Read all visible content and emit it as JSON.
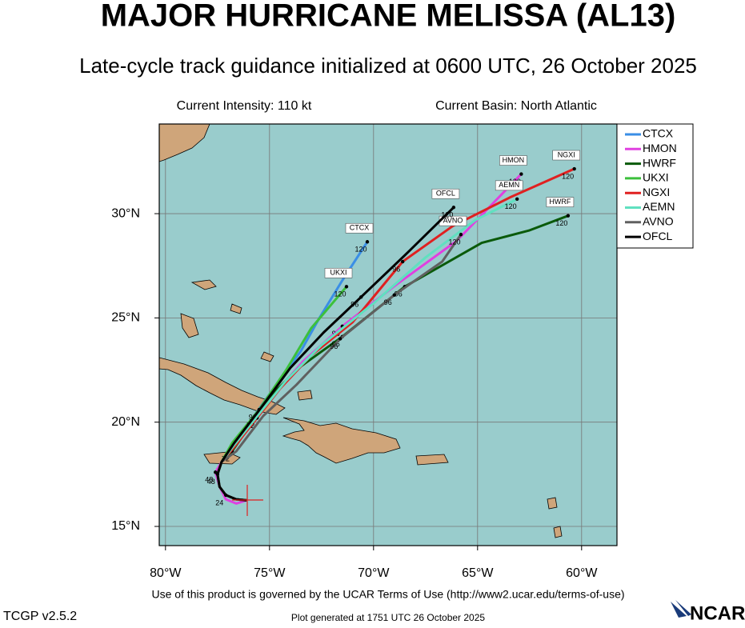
{
  "header": {
    "title": "MAJOR HURRICANE MELISSA (AL13)",
    "subtitle": "Late-cycle track guidance initialized at 0600 UTC, 26 October 2025"
  },
  "info": {
    "intensity": "Current Intensity: 110 kt",
    "basin": "Current Basin: North Atlantic"
  },
  "map": {
    "xlim": [
      -80.3,
      -58.3
    ],
    "ylim": [
      14.08,
      34.3
    ],
    "xticks": [
      {
        "value": -80,
        "label": "80°W"
      },
      {
        "value": -75,
        "label": "75°W"
      },
      {
        "value": -70,
        "label": "70°W"
      },
      {
        "value": -65,
        "label": "65°W"
      },
      {
        "value": -60,
        "label": "60°W"
      }
    ],
    "yticks": [
      {
        "value": 15,
        "label": "15°N"
      },
      {
        "value": 20,
        "label": "20°N"
      },
      {
        "value": 25,
        "label": "25°N"
      },
      {
        "value": 30,
        "label": "30°N"
      }
    ],
    "tracks": [
      {
        "name": "CTCX",
        "color": "#3a8ee6",
        "lon": [
          -76.1,
          -76.6,
          -77.1,
          -77.4,
          -77.5,
          -77.3,
          -76.6,
          -75.6,
          -74.6,
          -73.5,
          -72.6,
          -71.5,
          -70.3
        ],
        "lat": [
          16.25,
          16.3,
          16.5,
          16.9,
          17.5,
          18.1,
          19.1,
          20.5,
          21.9,
          23.4,
          25,
          26.8,
          28.65
        ],
        "hours": [
          null,
          null,
          null,
          null,
          null,
          null,
          null,
          null,
          null,
          null,
          null,
          null,
          120
        ]
      },
      {
        "name": "HMON",
        "color": "#e040e0",
        "lon": [
          -76.1,
          -76.6,
          -77.1,
          -77.4,
          -77.6,
          -77,
          -76,
          -74.8,
          -73.4,
          -71.5,
          -68.9,
          -66,
          -62.9
        ],
        "lat": [
          16.25,
          16.1,
          16.3,
          16.9,
          17.6,
          18.6,
          19.8,
          21.3,
          22.9,
          24.6,
          26.6,
          28.7,
          31.9
        ],
        "hours": [
          null,
          null,
          null,
          null,
          48,
          null,
          null,
          null,
          null,
          96,
          null,
          null,
          120
        ]
      },
      {
        "name": "HWRF",
        "color": "#0a5a0a",
        "lon": [
          -76.1,
          -76.6,
          -77.1,
          -77.4,
          -77.5,
          -77.3,
          -76.8,
          -75.9,
          -75,
          -73.6,
          -71.5,
          -68.5,
          -64.8,
          -62.5,
          -60.65
        ],
        "lat": [
          16.25,
          16.3,
          16.5,
          16.9,
          17.5,
          18.1,
          18.6,
          19.9,
          21.2,
          22.6,
          24.1,
          26.5,
          28.6,
          29.2,
          29.9
        ],
        "hours": [
          null,
          null,
          null,
          null,
          null,
          null,
          72,
          null,
          null,
          null,
          96,
          96,
          null,
          null,
          120
        ]
      },
      {
        "name": "UKXI",
        "color": "#3cc03c",
        "lon": [
          -76.1,
          -76.6,
          -77.1,
          -77.4,
          -77.5,
          -77.3,
          -76.8,
          -75.5,
          -74.2,
          -73,
          -71.3
        ],
        "lat": [
          16.25,
          16.3,
          16.5,
          16.9,
          17.5,
          18.1,
          19,
          20.6,
          22.5,
          24.5,
          26.5
        ],
        "hours": [
          null,
          null,
          null,
          null,
          null,
          null,
          null,
          96,
          null,
          null,
          120
        ]
      },
      {
        "name": "NGXI",
        "color": "#e02020",
        "lon": [
          -76.1,
          -76.6,
          -77.1,
          -77.4,
          -77.5,
          -77.3,
          -76.7,
          -75.6,
          -74.5,
          -73,
          -71,
          -68.6,
          -66.2,
          -63.4,
          -60.35
        ],
        "lat": [
          16.25,
          16.3,
          16.5,
          16.9,
          17.5,
          18.1,
          18.8,
          20.2,
          21.6,
          23.2,
          24.8,
          27.7,
          29.4,
          30.8,
          32.15
        ],
        "hours": [
          null,
          null,
          null,
          null,
          null,
          null,
          null,
          72,
          null,
          null,
          null,
          96,
          null,
          null,
          120
        ]
      },
      {
        "name": "AEMN",
        "color": "#60e0c0",
        "lon": [
          -76.1,
          -76.6,
          -77.1,
          -77.4,
          -77.5,
          -77.3,
          -76.7,
          -75.5,
          -74.2,
          -72.5,
          -70,
          -67.5,
          -65.1,
          -63.1
        ],
        "lat": [
          16.25,
          16.3,
          16.5,
          16.9,
          17.5,
          18.1,
          18.9,
          20.4,
          22,
          23.7,
          25.7,
          27.9,
          29.7,
          30.7
        ],
        "hours": [
          null,
          null,
          null,
          null,
          null,
          null,
          null,
          null,
          null,
          null,
          null,
          null,
          null,
          120
        ]
      },
      {
        "name": "AVNO",
        "color": "#606060",
        "lon": [
          -76.1,
          -76.6,
          -77.1,
          -77.4,
          -77.5,
          -77.3,
          -76.6,
          -75.3,
          -73.7,
          -71.6,
          -69,
          -66.7,
          -65.8
        ],
        "lat": [
          16.25,
          16.3,
          16.5,
          16.9,
          17.5,
          18.1,
          18.6,
          20.3,
          21.8,
          24,
          26.1,
          27.7,
          29
        ],
        "hours": [
          null,
          null,
          null,
          null,
          null,
          null,
          null,
          null,
          null,
          96,
          96,
          null,
          120
        ]
      },
      {
        "name": "OFCL",
        "color": "#000000",
        "lon": [
          -76.1,
          -76.6,
          -77.1,
          -77.4,
          -77.5,
          -77.3,
          -76.7,
          -75.4,
          -74,
          -72.4,
          -70.6,
          -68.5,
          -66.15
        ],
        "lat": [
          16.25,
          16.3,
          16.5,
          16.9,
          17.5,
          18.1,
          19,
          20.7,
          22.6,
          24.3,
          26,
          28,
          30.3
        ],
        "hours": [
          null,
          null,
          24,
          null,
          48,
          null,
          null,
          null,
          null,
          null,
          96,
          null,
          120
        ]
      }
    ]
  },
  "footer": {
    "terms": "Use of this product is governed by the UCAR Terms of Use (http://www2.ucar.edu/terms-of-use)",
    "version": "TCGP v2.5.2",
    "generated": "Plot generated at 1751 UTC   26 October 2025",
    "logo": "NCAR"
  }
}
